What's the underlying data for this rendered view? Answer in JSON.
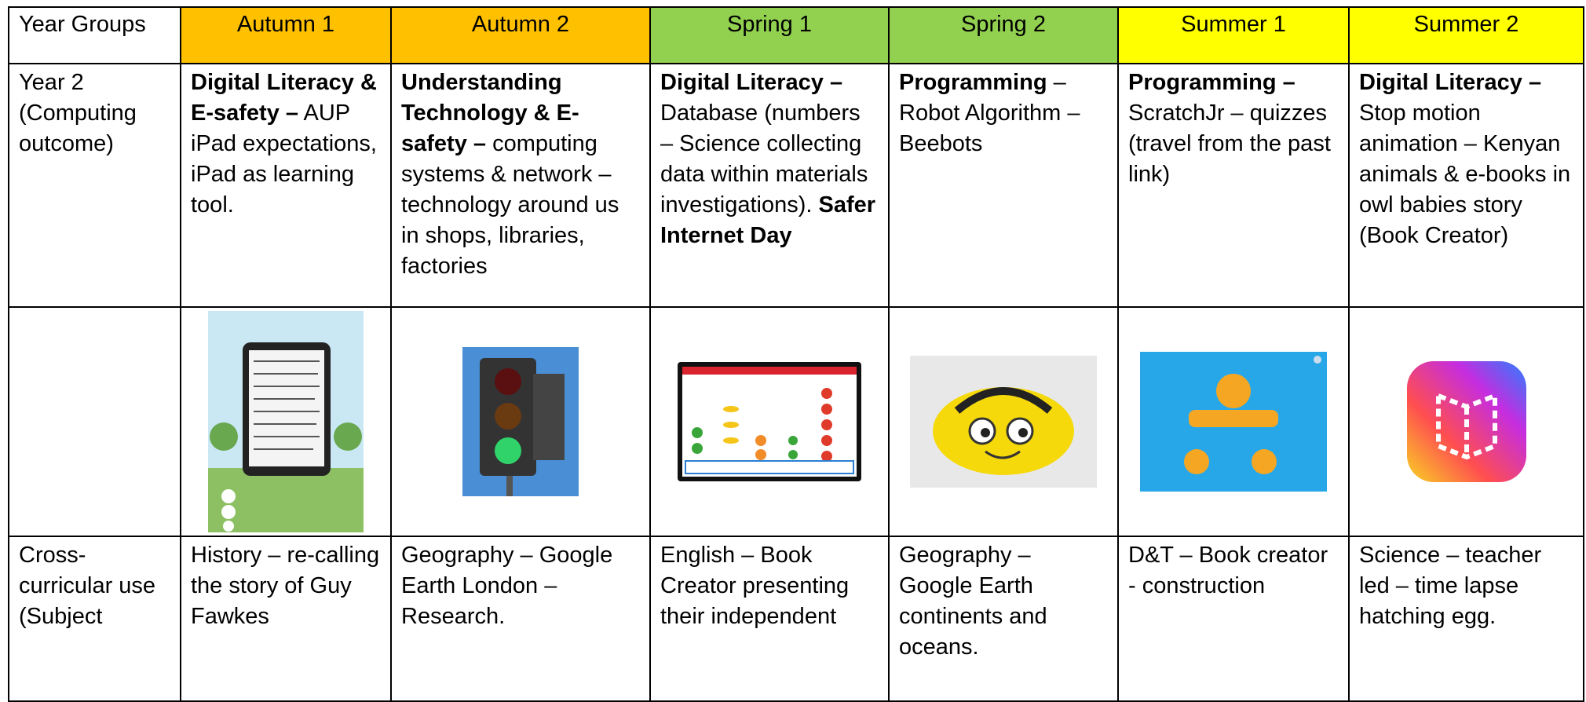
{
  "table": {
    "header": [
      {
        "text": "Year Groups",
        "color": "#ffffff"
      },
      {
        "text": "Autumn 1",
        "color": "#ffc000"
      },
      {
        "text": "Autumn 2",
        "color": "#ffc000"
      },
      {
        "text": "Spring 1",
        "color": "#92d050"
      },
      {
        "text": "Spring 2",
        "color": "#92d050"
      },
      {
        "text": "Summer 1",
        "color": "#ffff00"
      },
      {
        "text": "Summer 2",
        "color": "#ffff00"
      }
    ],
    "rows": [
      {
        "label": "Year 2 (Computing outcome)",
        "cells": [
          [
            {
              "text": "Digital Literacy & E-safety –",
              "bold": true
            },
            {
              "text": "AUP iPad expectations, iPad as learning tool.",
              "bold": false
            }
          ],
          [
            {
              "text": "Understanding Technology & E-safety –",
              "bold": true
            },
            {
              "text": "computing systems & network – technology around us in shops, libraries, factories",
              "bold": false
            }
          ],
          [
            {
              "text": "Digital Literacy –",
              "bold": true
            },
            {
              "text": "Database (numbers – Science collecting data within materials investigations).",
              "bold": false
            },
            {
              "text": "Safer Internet Day",
              "bold": true
            }
          ],
          [
            {
              "text": "Programming",
              "bold": true
            },
            {
              "text": "– Robot Algorithm – Beebots",
              "bold": false
            }
          ],
          [
            {
              "text": "Programming –",
              "bold": true
            },
            {
              "text": "ScratchJr – quizzes (travel from the past link)",
              "bold": false
            }
          ],
          [
            {
              "text": "Digital Literacy –",
              "bold": true
            },
            {
              "text": "Stop motion animation – Kenyan animals & e-books in owl babies story (Book Creator)",
              "bold": false
            }
          ]
        ]
      },
      {
        "label": "Cross-curricular use (Subject",
        "cells": [
          [
            {
              "text": "History – re-calling the story of Guy Fawkes",
              "bold": false
            }
          ],
          [
            {
              "text": "Geography – Google Earth London – Research.",
              "bold": false
            }
          ],
          [
            {
              "text": "English – Book Creator presenting their independent",
              "bold": false
            }
          ],
          [
            {
              "text": "Geography – Google Earth continents and oceans.",
              "bold": false
            }
          ],
          [
            {
              "text": "D&T – Book creator - construction",
              "bold": false
            }
          ],
          [
            {
              "text": "Science – teacher led – time lapse hatching egg.",
              "bold": false
            }
          ]
        ]
      }
    ]
  }
}
